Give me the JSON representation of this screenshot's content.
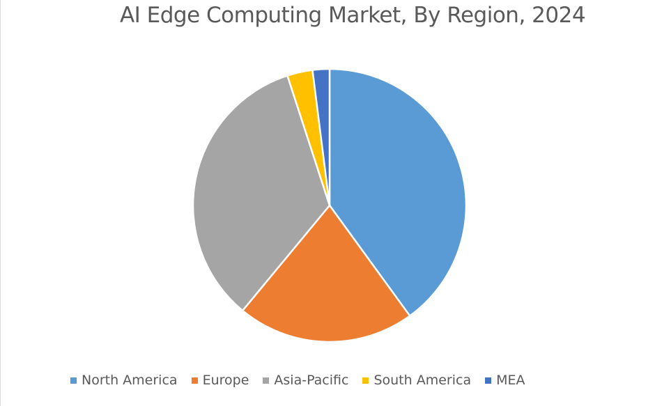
{
  "chart_data": {
    "type": "pie",
    "title": "AI Edge Computing Market, By Region, 2024",
    "categories": [
      "North America",
      "Europe",
      "Asia-Pacific",
      "South America",
      "MEA"
    ],
    "values": [
      40,
      21,
      34,
      3,
      2
    ],
    "colors": [
      "#5b9bd5",
      "#ed7d31",
      "#a5a5a5",
      "#ffc000",
      "#4472c4"
    ],
    "legend_position": "bottom",
    "start_angle": "12 o'clock",
    "direction": "clockwise"
  }
}
